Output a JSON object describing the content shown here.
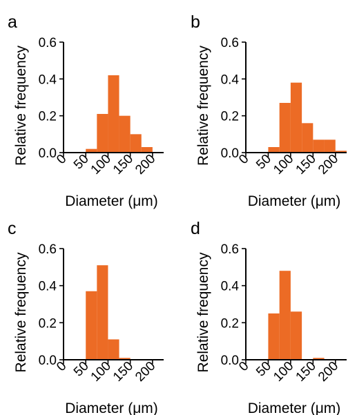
{
  "chart_data": [
    {
      "type": "bar",
      "panel": "a",
      "bins": [
        [
          0,
          25
        ],
        [
          25,
          50
        ],
        [
          50,
          75
        ],
        [
          75,
          100
        ],
        [
          100,
          125
        ],
        [
          125,
          150
        ],
        [
          150,
          175
        ],
        [
          175,
          200
        ],
        [
          200,
          225
        ]
      ],
      "values": [
        0.0,
        0.0,
        0.02,
        0.21,
        0.42,
        0.2,
        0.1,
        0.03,
        0.0
      ],
      "xticks": [
        "0",
        "50",
        "100",
        "150",
        "200"
      ],
      "yticks": [
        "0.0",
        "0.2",
        "0.4",
        "0.6"
      ],
      "xlabel": "Diameter (μm)",
      "ylabel": "Relative frequency",
      "xlim": [
        0,
        225
      ],
      "ylim": [
        0,
        0.6
      ],
      "color": "#ec6b25"
    },
    {
      "type": "bar",
      "panel": "b",
      "bins": [
        [
          0,
          25
        ],
        [
          25,
          50
        ],
        [
          50,
          75
        ],
        [
          75,
          100
        ],
        [
          100,
          125
        ],
        [
          125,
          150
        ],
        [
          150,
          175
        ],
        [
          175,
          200
        ],
        [
          200,
          225
        ]
      ],
      "values": [
        0.0,
        0.0,
        0.03,
        0.27,
        0.38,
        0.16,
        0.07,
        0.07,
        0.01
      ],
      "xticks": [
        "0",
        "50",
        "100",
        "150",
        "200"
      ],
      "yticks": [
        "0.0",
        "0.2",
        "0.4",
        "0.6"
      ],
      "xlabel": "Diameter (μm)",
      "ylabel": "Relative frequency",
      "xlim": [
        0,
        225
      ],
      "ylim": [
        0,
        0.6
      ],
      "color": "#ec6b25"
    },
    {
      "type": "bar",
      "panel": "c",
      "bins": [
        [
          0,
          25
        ],
        [
          25,
          50
        ],
        [
          50,
          75
        ],
        [
          75,
          100
        ],
        [
          100,
          125
        ],
        [
          125,
          150
        ],
        [
          150,
          175
        ],
        [
          175,
          200
        ],
        [
          200,
          225
        ]
      ],
      "values": [
        0.0,
        0.0,
        0.37,
        0.51,
        0.11,
        0.01,
        0.0,
        0.0,
        0.0
      ],
      "xticks": [
        "0",
        "50",
        "100",
        "150",
        "200"
      ],
      "yticks": [
        "0.0",
        "0.2",
        "0.4",
        "0.6"
      ],
      "xlabel": "Diameter (μm)",
      "ylabel": "Relative frequency",
      "xlim": [
        0,
        225
      ],
      "ylim": [
        0,
        0.6
      ],
      "color": "#ec6b25"
    },
    {
      "type": "bar",
      "panel": "d",
      "bins": [
        [
          0,
          25
        ],
        [
          25,
          50
        ],
        [
          50,
          75
        ],
        [
          75,
          100
        ],
        [
          100,
          125
        ],
        [
          125,
          150
        ],
        [
          150,
          175
        ],
        [
          175,
          200
        ],
        [
          200,
          225
        ]
      ],
      "values": [
        0.0,
        0.0,
        0.25,
        0.48,
        0.26,
        0.0,
        0.01,
        0.0,
        0.0
      ],
      "xticks": [
        "0",
        "50",
        "100",
        "150",
        "200"
      ],
      "yticks": [
        "0.0",
        "0.2",
        "0.4",
        "0.6"
      ],
      "xlabel": "Diameter (μm)",
      "ylabel": "Relative frequency",
      "xlim": [
        0,
        225
      ],
      "ylim": [
        0,
        0.6
      ],
      "color": "#ec6b25"
    }
  ]
}
